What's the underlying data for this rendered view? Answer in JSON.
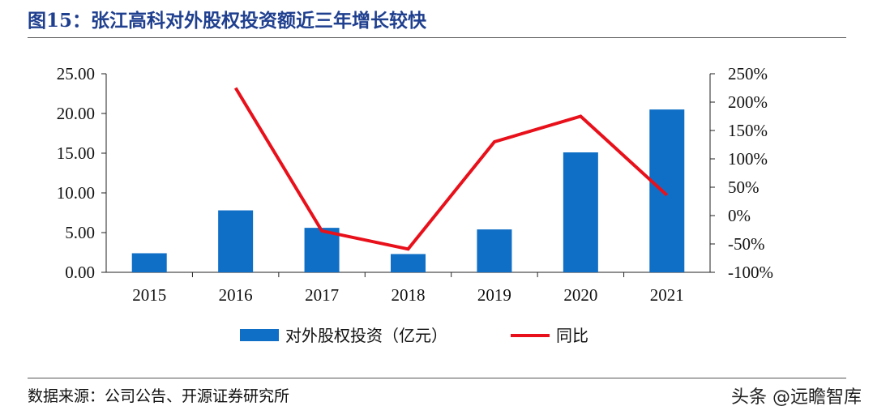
{
  "title": "图15：张江高科对外股权投资额近三年增长较快",
  "source": "数据来源：公司公告、开源证券研究所",
  "watermark": "头条 @远瞻智库",
  "chart_data": {
    "type": "bar",
    "categories": [
      "2015",
      "2016",
      "2017",
      "2018",
      "2019",
      "2020",
      "2021"
    ],
    "series": [
      {
        "name": "对外股权投资（亿元）",
        "type": "bar",
        "axis": "left",
        "values": [
          2.4,
          7.8,
          5.6,
          2.3,
          5.4,
          15.1,
          20.5
        ],
        "color": "#0f6fc6"
      },
      {
        "name": "同比",
        "type": "line",
        "axis": "right",
        "values": [
          null,
          225,
          -27,
          -59,
          130,
          175,
          36
        ],
        "color": "#e8101a"
      }
    ],
    "yleft": {
      "min": 0,
      "max": 25,
      "ticks": [
        "0.00",
        "5.00",
        "10.00",
        "15.00",
        "20.00",
        "25.00"
      ]
    },
    "yright": {
      "min": -100,
      "max": 250,
      "ticks": [
        "-100%",
        "-50%",
        "0%",
        "50%",
        "100%",
        "150%",
        "200%",
        "250%"
      ]
    },
    "legend_position": "bottom",
    "grid": false
  }
}
